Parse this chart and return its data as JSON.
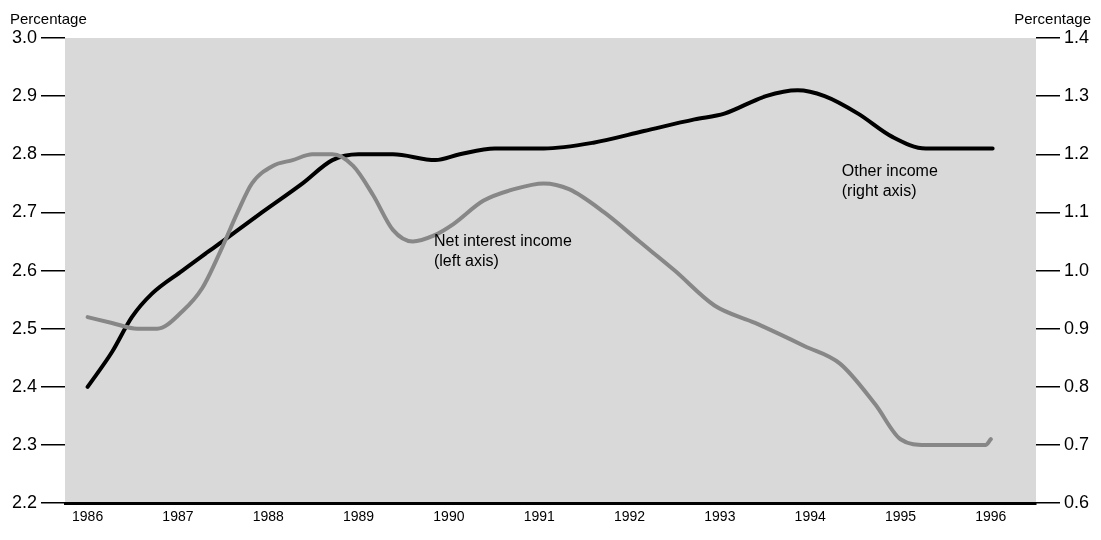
{
  "chart_data": {
    "type": "line",
    "ylabel": "Percentage",
    "y2label": "Percentage",
    "xlim": [
      1985.75,
      1996.5
    ],
    "xticks": [
      1986,
      1987,
      1988,
      1989,
      1990,
      1991,
      1992,
      1993,
      1994,
      1995,
      1996
    ],
    "ylim": [
      2.2,
      3.0
    ],
    "yticks": [
      2.2,
      2.3,
      2.4,
      2.5,
      2.6,
      2.7,
      2.8,
      2.9,
      {
        "value": 3,
        "label": "3.0"
      }
    ],
    "y2lim": [
      0.6,
      1.4
    ],
    "y2ticks": [
      0.6,
      0.7,
      0.8,
      0.9,
      {
        "value": 1,
        "label": "1.0"
      },
      1.1,
      1.2,
      1.3,
      1.4
    ],
    "grid": false,
    "legend": false,
    "marker": "none",
    "line_style": "solid",
    "series": [
      {
        "name": "Net interest income (left axis)",
        "color": "#878787",
        "x": [
          1986.0,
          1986.27,
          1986.55,
          1986.77,
          1987.05,
          1987.27,
          1987.49,
          1987.66,
          1987.82,
          1988.05,
          1988.27,
          1988.49,
          1988.71,
          1988.94,
          1989.16,
          1989.38,
          1989.6,
          1989.83,
          1990.05,
          1990.38,
          1990.72,
          1991.05,
          1991.33,
          1991.72,
          1992.11,
          1992.5,
          1992.94,
          1993.39,
          1993.94,
          1994.33,
          1994.72,
          1995.0,
          1995.28,
          1995.61,
          1995.94,
          1996.0
        ],
        "values": [
          2.52,
          2.51,
          2.5,
          2.5,
          2.53,
          2.57,
          2.64,
          2.7,
          2.75,
          2.78,
          2.79,
          2.8,
          2.8,
          2.78,
          2.73,
          2.67,
          2.65,
          2.66,
          2.68,
          2.72,
          2.74,
          2.75,
          2.74,
          2.7,
          2.65,
          2.6,
          2.54,
          2.51,
          2.47,
          2.44,
          2.37,
          2.31,
          2.3,
          2.3,
          2.3,
          2.31
        ]
      },
      {
        "name": "Other income (right axis)",
        "color": "#000000",
        "axis": "y2",
        "x": [
          1986.0,
          1986.27,
          1986.49,
          1986.71,
          1987.05,
          1987.49,
          1987.93,
          1988.38,
          1988.71,
          1989.0,
          1989.38,
          1989.85,
          1990.12,
          1990.51,
          1991.05,
          1991.6,
          1992.16,
          1992.72,
          1993.05,
          1993.51,
          1993.86,
          1994.16,
          1994.53,
          1994.91,
          1995.28,
          1995.64,
          1996.02
        ],
        "values": [
          0.8,
          0.86,
          0.92,
          0.96,
          1.0,
          1.05,
          1.1,
          1.15,
          1.19,
          1.2,
          1.2,
          1.19,
          1.2,
          1.21,
          1.21,
          1.22,
          1.24,
          1.26,
          1.27,
          1.3,
          1.31,
          1.3,
          1.27,
          1.23,
          1.21,
          1.21,
          1.21
        ]
      }
    ]
  }
}
